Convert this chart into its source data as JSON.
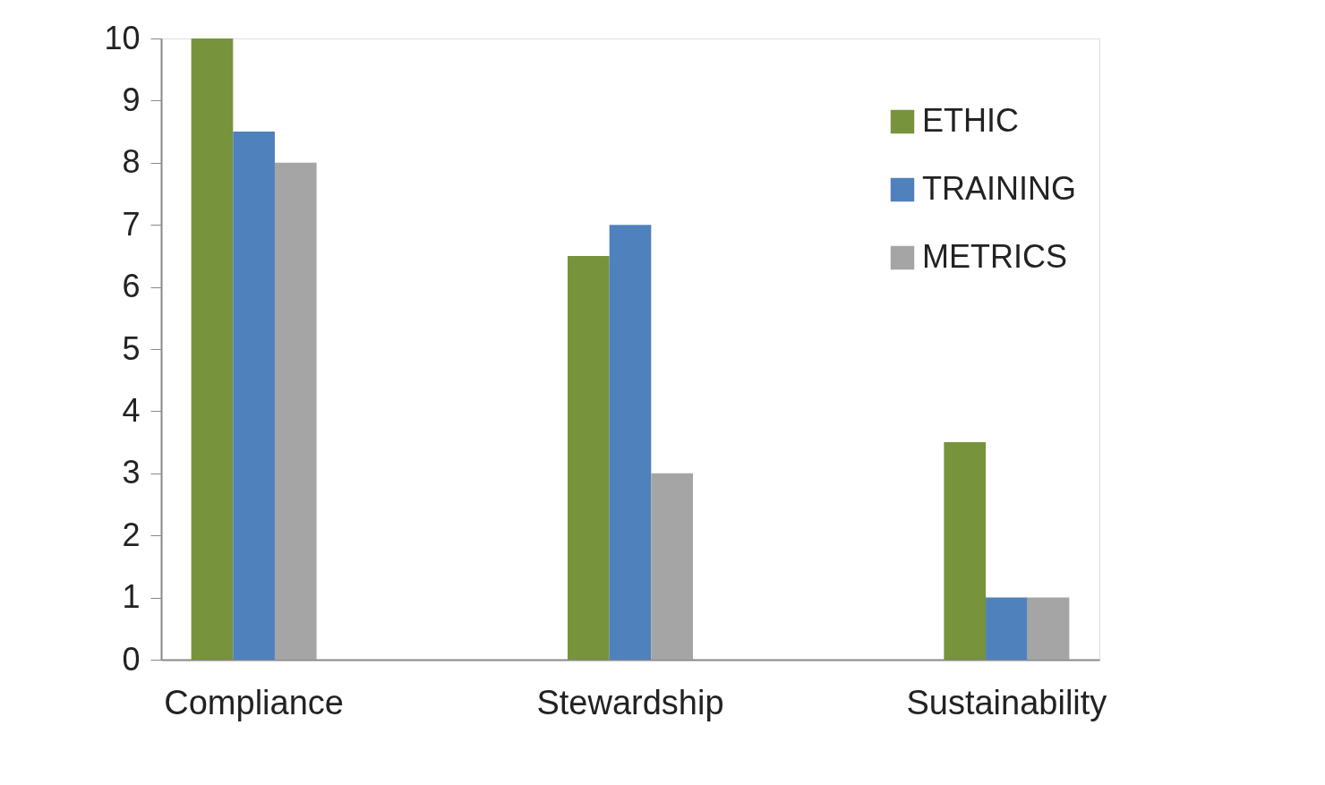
{
  "chart_data": {
    "type": "bar",
    "categories": [
      "Compliance",
      "Stewardship",
      "Sustainability"
    ],
    "series": [
      {
        "name": "ETHIC",
        "color": "#77933c",
        "values": [
          10,
          6.5,
          3.5
        ]
      },
      {
        "name": "TRAINING",
        "color": "#4f81bd",
        "values": [
          8.5,
          7,
          1
        ]
      },
      {
        "name": "METRICS",
        "color": "#a5a5a5",
        "values": [
          8,
          3,
          1
        ]
      }
    ],
    "ylim": [
      0,
      10
    ],
    "yticks": [
      0,
      1,
      2,
      3,
      4,
      5,
      6,
      7,
      8,
      9,
      10
    ],
    "grid": false,
    "legend": "top right"
  }
}
